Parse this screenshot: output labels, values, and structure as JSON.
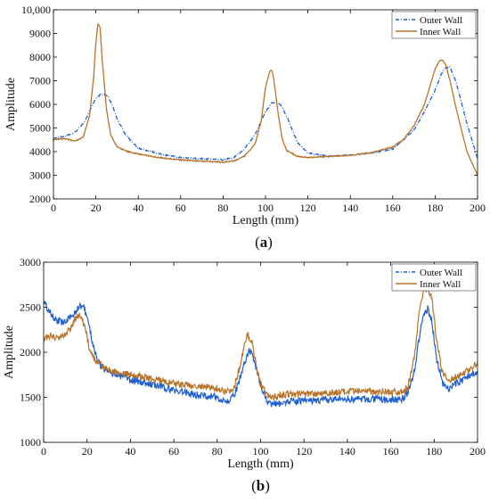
{
  "colors": {
    "outer": "#1f5fcf",
    "inner": "#b8732a",
    "axis": "#000000",
    "background": "#ffffff"
  },
  "chart_data": [
    {
      "panel": "(a)",
      "type": "line",
      "caption_letter": "a",
      "xlabel": "Length (mm)",
      "ylabel": "Amplitude",
      "xlim": [
        0,
        200
      ],
      "ylim": [
        2000,
        10000
      ],
      "xticks": [
        0,
        20,
        40,
        60,
        80,
        100,
        120,
        140,
        160,
        180,
        200
      ],
      "yticks": [
        2000,
        3000,
        4000,
        5000,
        6000,
        7000,
        8000,
        9000,
        10000
      ],
      "ytick_labels": [
        "2000",
        "3000",
        "4000",
        "5000",
        "6000",
        "7000",
        "8000",
        "9000",
        "10,000"
      ],
      "grid": false,
      "legend": "top-right",
      "series": [
        {
          "name": "Outer Wall",
          "style": "dashdot",
          "color": "#1f5fcf",
          "x": [
            0,
            5,
            10,
            15,
            18,
            20,
            22,
            24,
            26,
            28,
            30,
            34,
            40,
            50,
            60,
            70,
            80,
            85,
            90,
            95,
            100,
            103,
            105,
            107,
            110,
            115,
            120,
            130,
            140,
            150,
            160,
            170,
            175,
            180,
            183,
            185,
            187,
            190,
            195,
            200
          ],
          "y": [
            4550,
            4650,
            4800,
            5300,
            5900,
            6250,
            6400,
            6420,
            6300,
            5900,
            5400,
            4700,
            4150,
            3900,
            3750,
            3700,
            3650,
            3750,
            4100,
            4700,
            5700,
            6050,
            6100,
            6000,
            5500,
            4400,
            3950,
            3800,
            3850,
            3950,
            4100,
            4900,
            5700,
            6600,
            7300,
            7550,
            7600,
            6900,
            5200,
            3700
          ]
        },
        {
          "name": "Inner Wall",
          "style": "solid",
          "color": "#b8732a",
          "x": [
            0,
            5,
            10,
            14,
            17,
            19,
            20,
            21,
            22,
            23,
            25,
            27,
            30,
            35,
            40,
            50,
            60,
            70,
            80,
            85,
            90,
            95,
            98,
            100,
            102,
            103,
            104,
            106,
            108,
            110,
            115,
            120,
            130,
            140,
            150,
            160,
            165,
            170,
            175,
            178,
            180,
            182,
            183,
            185,
            187,
            190,
            195,
            200
          ],
          "y": [
            4500,
            4550,
            4450,
            4600,
            5500,
            7200,
            8600,
            9400,
            9250,
            7900,
            5800,
            4700,
            4200,
            4000,
            3900,
            3750,
            3650,
            3600,
            3550,
            3600,
            3800,
            4300,
            5300,
            6700,
            7400,
            7450,
            7000,
            5600,
            4500,
            4050,
            3800,
            3750,
            3800,
            3850,
            3950,
            4200,
            4500,
            5100,
            6000,
            6900,
            7500,
            7850,
            7900,
            7700,
            7000,
            5800,
            4000,
            3000
          ]
        }
      ]
    },
    {
      "panel": "(b)",
      "type": "line",
      "caption_letter": "b",
      "xlabel": "Length (mm)",
      "ylabel": "Amplitude",
      "xlim": [
        0,
        200
      ],
      "ylim": [
        1000,
        3000
      ],
      "xticks": [
        0,
        20,
        40,
        60,
        80,
        100,
        120,
        140,
        160,
        180,
        200
      ],
      "yticks": [
        1000,
        1500,
        2000,
        2500,
        3000
      ],
      "ytick_labels": [
        "1000",
        "1500",
        "2000",
        "2500",
        "3000"
      ],
      "grid": false,
      "legend": "top-right",
      "series": [
        {
          "name": "Outer Wall",
          "style": "dashdot",
          "color": "#1f5fcf",
          "x": [
            0,
            3,
            6,
            10,
            13,
            16,
            18,
            20,
            23,
            26,
            30,
            40,
            50,
            60,
            70,
            80,
            85,
            88,
            91,
            93,
            95,
            97,
            100,
            103,
            106,
            110,
            120,
            130,
            140,
            150,
            160,
            165,
            168,
            171,
            173,
            175,
            177,
            179,
            181,
            184,
            187,
            190,
            195,
            200
          ],
          "y": [
            2560,
            2450,
            2350,
            2330,
            2400,
            2500,
            2520,
            2400,
            2050,
            1850,
            1780,
            1700,
            1640,
            1580,
            1530,
            1500,
            1450,
            1520,
            1750,
            1900,
            2020,
            1900,
            1650,
            1450,
            1420,
            1450,
            1460,
            1470,
            1480,
            1480,
            1470,
            1480,
            1550,
            1800,
            2150,
            2400,
            2480,
            2350,
            1950,
            1650,
            1600,
            1650,
            1720,
            1800
          ]
        },
        {
          "name": "Inner Wall",
          "style": "solid",
          "color": "#b8732a",
          "x": [
            0,
            3,
            6,
            10,
            13,
            15,
            17,
            19,
            21,
            24,
            27,
            30,
            40,
            50,
            60,
            70,
            80,
            85,
            88,
            91,
            93,
            94,
            96,
            98,
            100,
            103,
            106,
            110,
            120,
            130,
            140,
            150,
            160,
            165,
            168,
            171,
            173,
            175,
            177,
            179,
            181,
            184,
            187,
            190,
            195,
            200
          ],
          "y": [
            2150,
            2180,
            2170,
            2180,
            2300,
            2380,
            2400,
            2300,
            2050,
            1900,
            1850,
            1800,
            1750,
            1700,
            1650,
            1620,
            1600,
            1560,
            1620,
            1900,
            2150,
            2200,
            2100,
            1850,
            1650,
            1520,
            1500,
            1530,
            1540,
            1550,
            1560,
            1570,
            1560,
            1550,
            1620,
            1950,
            2450,
            2680,
            2720,
            2600,
            2150,
            1750,
            1680,
            1730,
            1790,
            1870
          ]
        }
      ]
    }
  ]
}
